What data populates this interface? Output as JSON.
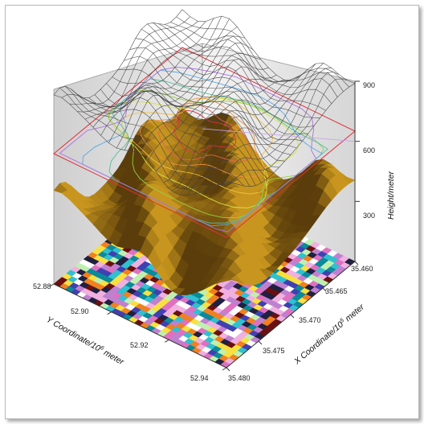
{
  "chart_data": {
    "type": "surface3d",
    "title": "",
    "layers": [
      {
        "name": "",
        "kind": "wireframe",
        "z": 900
      },
      {
        "name": "",
        "kind": "contour",
        "z": 600
      },
      {
        "name": "",
        "kind": "surface"
      },
      {
        "name": "",
        "kind": "colormap",
        "z": 0
      }
    ],
    "axes": {
      "x": {
        "label": "X Coordinate/10",
        "exp": "5",
        "unit": " meter",
        "ticks": [
          "35.460",
          "35.465",
          "35.470",
          "35.475",
          "35.480"
        ],
        "range": [
          35.46,
          35.48
        ]
      },
      "y": {
        "label": "Y Coordinate/10",
        "exp": "6",
        "unit": " meter",
        "ticks": [
          "52.88",
          "52.90",
          "52.92",
          "52.94"
        ],
        "range": [
          52.88,
          52.94
        ]
      },
      "z": {
        "label": "Height/meter",
        "ticks": [
          "300",
          "600",
          "900"
        ],
        "range": [
          0,
          900
        ]
      }
    },
    "colors": {
      "wireframe": "#444444",
      "surface_dark": "#5a3d0a",
      "surface_light": "#c8961e",
      "wall": "#e8e8e8",
      "contour_warm": "#e0303a",
      "contour_cool": "#58a8e8"
    }
  }
}
